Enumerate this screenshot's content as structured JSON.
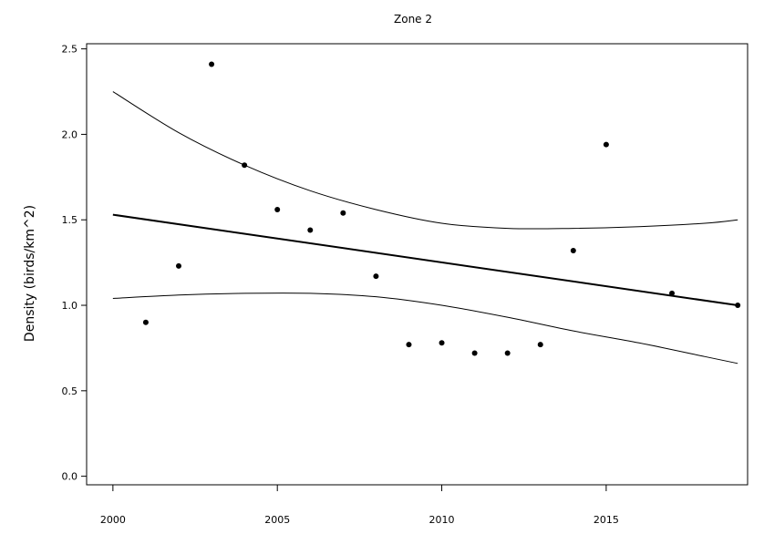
{
  "chart_data": {
    "type": "scatter",
    "title": "Zone 2",
    "xlabel": "",
    "ylabel": "Density (birds/km^2)",
    "xlim": [
      1999.2,
      2019.3
    ],
    "ylim": [
      -0.05,
      2.53
    ],
    "xticks": [
      2000,
      2005,
      2010,
      2015
    ],
    "xtick_labels": [
      "2000",
      "2005",
      "2010",
      "2015"
    ],
    "yticks": [
      0.0,
      0.5,
      1.0,
      1.5,
      2.0,
      2.5
    ],
    "ytick_labels": [
      "0.0",
      "0.5",
      "1.0",
      "1.5",
      "2.0",
      "2.5"
    ],
    "grid": false,
    "legend": "none",
    "points": {
      "x": [
        2001,
        2002,
        2003,
        2004,
        2005,
        2006,
        2007,
        2008,
        2009,
        2010,
        2011,
        2012,
        2013,
        2014,
        2015,
        2017,
        2019
      ],
      "y": [
        0.9,
        1.23,
        2.41,
        1.82,
        1.56,
        1.44,
        1.54,
        1.17,
        0.77,
        0.78,
        0.72,
        0.72,
        0.77,
        1.32,
        1.94,
        1.07,
        1.0
      ]
    },
    "trend_line": {
      "x": [
        2000,
        2019
      ],
      "y": [
        1.53,
        1.0
      ]
    },
    "upper_band": {
      "x": [
        2000,
        2002,
        2004,
        2006,
        2008,
        2010,
        2012,
        2014,
        2016,
        2018,
        2019
      ],
      "y": [
        2.25,
        2.01,
        1.82,
        1.67,
        1.56,
        1.48,
        1.45,
        1.45,
        1.46,
        1.48,
        1.5
      ]
    },
    "lower_band": {
      "x": [
        2000,
        2002,
        2004,
        2006,
        2008,
        2010,
        2012,
        2014,
        2016,
        2018,
        2019
      ],
      "y": [
        1.04,
        1.06,
        1.07,
        1.07,
        1.05,
        1.0,
        0.93,
        0.85,
        0.78,
        0.7,
        0.66
      ]
    }
  }
}
